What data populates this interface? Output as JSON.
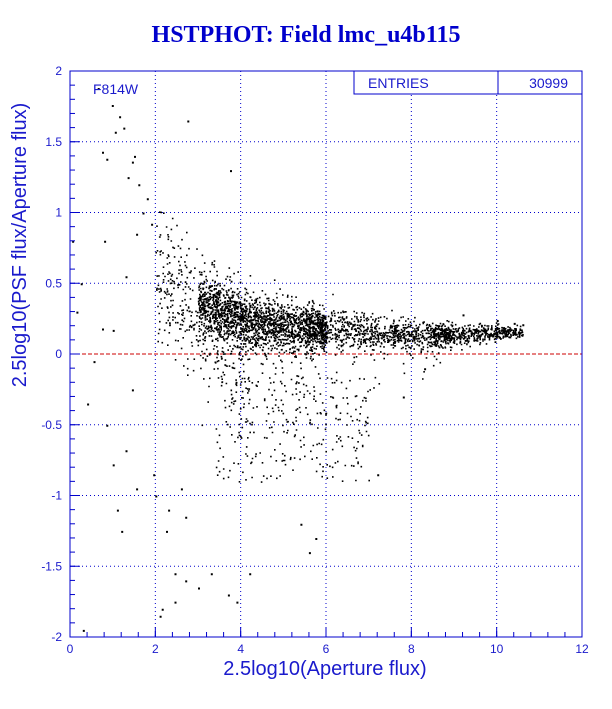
{
  "title": "HSTPHOT: Field lmc_u4b115",
  "stats": {
    "entries_label": "ENTRIES",
    "entries_value": "30999"
  },
  "colors": {
    "axis": "#0000cc",
    "grid": "#0000cc",
    "points": "#000000",
    "zero_line": "#cc0000",
    "text": "#1a1acc"
  },
  "chart_data": {
    "type": "scatter",
    "title": "HSTPHOT: Field lmc_u4b115",
    "annotation": "F814W",
    "xlabel": "2.5log10(Aperture flux)",
    "ylabel": "2.5log10(PSF flux/Aperture flux)",
    "xlim": [
      0,
      12
    ],
    "ylim": [
      -2,
      2
    ],
    "xticks": [
      0,
      2,
      4,
      6,
      8,
      10,
      12
    ],
    "xtick_labels": [
      "0",
      "2",
      "4",
      "6",
      "8",
      "10",
      "12"
    ],
    "yticks": [
      -2,
      -1.5,
      -1,
      -0.5,
      0,
      0.5,
      1,
      1.5,
      2
    ],
    "ytick_labels": [
      "-2",
      "-1.5",
      "-1",
      "-0.5",
      "0",
      "0.5",
      "1",
      "1.5",
      "2"
    ],
    "grid": true,
    "reference_line": {
      "y": 0,
      "style": "dashed",
      "color": "#cc0000"
    },
    "entries": 30999,
    "trend": [
      {
        "x": 3.0,
        "y": 0.35
      },
      {
        "x": 4.0,
        "y": 0.25
      },
      {
        "x": 5.0,
        "y": 0.2
      },
      {
        "x": 6.0,
        "y": 0.17
      },
      {
        "x": 7.0,
        "y": 0.15
      },
      {
        "x": 8.0,
        "y": 0.14
      },
      {
        "x": 9.0,
        "y": 0.14
      },
      {
        "x": 10.0,
        "y": 0.16
      }
    ],
    "outliers": [
      {
        "x": 0.65,
        "y": 1.88
      },
      {
        "x": 0.98,
        "y": 1.76
      },
      {
        "x": 1.15,
        "y": 1.68
      },
      {
        "x": 1.25,
        "y": 1.6
      },
      {
        "x": 1.05,
        "y": 1.57
      },
      {
        "x": 0.75,
        "y": 1.43
      },
      {
        "x": 0.85,
        "y": 1.38
      },
      {
        "x": 1.5,
        "y": 1.4
      },
      {
        "x": 1.45,
        "y": 1.36
      },
      {
        "x": 1.35,
        "y": 1.25
      },
      {
        "x": 1.6,
        "y": 1.2
      },
      {
        "x": 1.8,
        "y": 1.1
      },
      {
        "x": 2.75,
        "y": 1.65
      },
      {
        "x": 3.75,
        "y": 1.3
      },
      {
        "x": 1.7,
        "y": 1.0
      },
      {
        "x": 1.9,
        "y": 0.92
      },
      {
        "x": 1.55,
        "y": 0.85
      },
      {
        "x": 0.8,
        "y": 0.8
      },
      {
        "x": 0.05,
        "y": 0.8
      },
      {
        "x": 0.25,
        "y": 0.5
      },
      {
        "x": 1.3,
        "y": 0.55
      },
      {
        "x": 0.15,
        "y": 0.3
      },
      {
        "x": 0.75,
        "y": 0.18
      },
      {
        "x": 1.0,
        "y": 0.17
      },
      {
        "x": 0.55,
        "y": -0.05
      },
      {
        "x": 1.45,
        "y": -0.25
      },
      {
        "x": 0.4,
        "y": -0.35
      },
      {
        "x": 0.85,
        "y": -0.5
      },
      {
        "x": 1.3,
        "y": -0.68
      },
      {
        "x": 1.0,
        "y": -0.78
      },
      {
        "x": 1.55,
        "y": -0.95
      },
      {
        "x": 1.95,
        "y": -0.85
      },
      {
        "x": 2.0,
        "y": -1.0
      },
      {
        "x": 2.6,
        "y": -0.95
      },
      {
        "x": 2.3,
        "y": -1.1
      },
      {
        "x": 2.7,
        "y": -1.15
      },
      {
        "x": 2.25,
        "y": -1.25
      },
      {
        "x": 5.4,
        "y": -1.2
      },
      {
        "x": 5.75,
        "y": -1.3
      },
      {
        "x": 5.6,
        "y": -1.4
      },
      {
        "x": 2.45,
        "y": -1.55
      },
      {
        "x": 2.7,
        "y": -1.6
      },
      {
        "x": 3.3,
        "y": -1.55
      },
      {
        "x": 4.2,
        "y": -1.55
      },
      {
        "x": 3.0,
        "y": -1.65
      },
      {
        "x": 3.7,
        "y": -1.7
      },
      {
        "x": 3.9,
        "y": -1.75
      },
      {
        "x": 2.45,
        "y": -1.75
      },
      {
        "x": 2.15,
        "y": -1.8
      },
      {
        "x": 2.1,
        "y": -1.85
      },
      {
        "x": 0.3,
        "y": -1.95
      },
      {
        "x": 7.2,
        "y": -0.85
      },
      {
        "x": 7.8,
        "y": -0.3
      },
      {
        "x": 8.3,
        "y": -0.1
      },
      {
        "x": 9.2,
        "y": 0.28
      },
      {
        "x": 10.0,
        "y": 0.24
      },
      {
        "x": 10.4,
        "y": 0.22
      },
      {
        "x": 10.6,
        "y": 0.21
      },
      {
        "x": 1.1,
        "y": -1.1
      },
      {
        "x": 1.2,
        "y": -1.25
      }
    ]
  }
}
